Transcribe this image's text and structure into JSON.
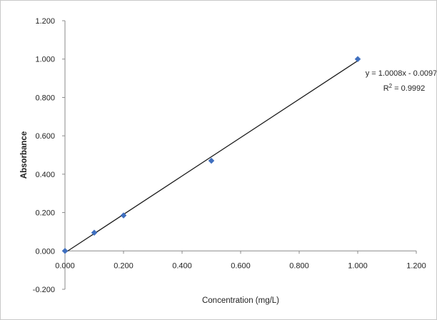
{
  "chart_data": {
    "type": "scatter",
    "xlabel": "Concentration (mg/L)",
    "ylabel": "Absorbance",
    "xlim": [
      0,
      1.2
    ],
    "ylim": [
      -0.2,
      1.2
    ],
    "x_ticks": [
      "0.000",
      "0.200",
      "0.400",
      "0.600",
      "0.800",
      "1.000",
      "1.200"
    ],
    "y_ticks": [
      "-0.200",
      "0.000",
      "0.200",
      "0.400",
      "0.600",
      "0.800",
      "1.000",
      "1.200"
    ],
    "series": [
      {
        "x": [
          0.0,
          0.1,
          0.2,
          0.5,
          1.0
        ],
        "y": [
          0.0,
          0.095,
          0.185,
          0.47,
          1.0
        ],
        "color": "#3f6fbf",
        "marker": "diamond"
      }
    ],
    "trendline": {
      "slope": 1.0008,
      "intercept": -0.0097,
      "x_range": [
        0.0,
        1.0
      ],
      "color": "#1a1a1a"
    },
    "annotations": {
      "equation": "y = 1.0008x - 0.0097",
      "r_squared_prefix": "R",
      "r_squared_sup": "2",
      "r_squared_value": " = 0.9992"
    },
    "grid": false,
    "legend": "none"
  }
}
